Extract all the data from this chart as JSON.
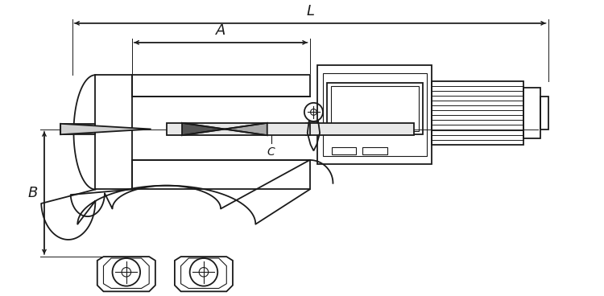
{
  "bg_color": "#ffffff",
  "line_color": "#1a1a1a",
  "figsize": [
    7.5,
    3.68
  ],
  "dpi": 100,
  "label_L": "L",
  "label_A": "A",
  "label_B": "B",
  "label_C": "C"
}
